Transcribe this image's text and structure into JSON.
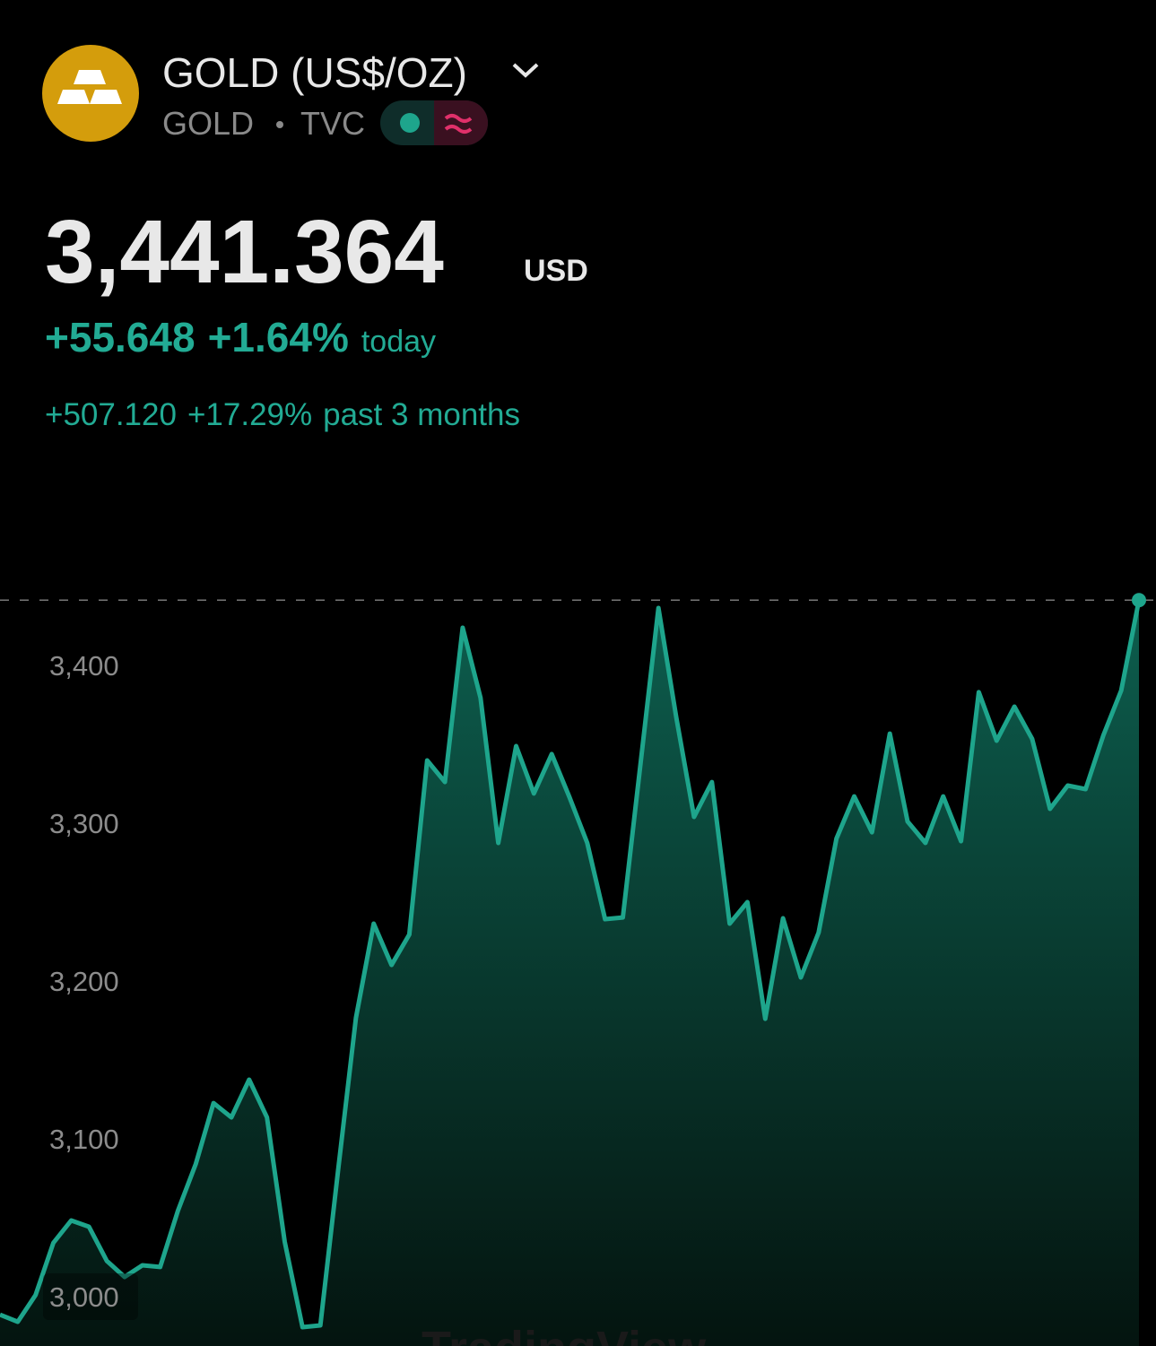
{
  "header": {
    "title": "GOLD (US$/OZ)",
    "symbol": "GOLD",
    "exchange": "TVC",
    "price": "3,441.364",
    "currency": "USD",
    "change_today": "+55.648",
    "change_today_pct": "+1.64%",
    "today_label": "today",
    "change_period": "+507.120",
    "change_period_pct": "+17.29%",
    "period_label": "past 3 months",
    "watermark": "TradingView"
  },
  "chart_data": {
    "type": "area",
    "color": "#1ea58c",
    "values": [
      2988.6,
      2984.1,
      3001.1,
      3034.1,
      3048.3,
      3044.3,
      3022.7,
      3012.5,
      3019.9,
      3018.8,
      3054.5,
      3084.1,
      3122.7,
      3113.6,
      3137.5,
      3113.6,
      3034.7,
      2980.7,
      2981.8,
      3080.1,
      3176.7,
      3236.4,
      3210.2,
      3229.5,
      3339.8,
      3326.1,
      3423.9,
      3379.5,
      3287.5,
      3348.9,
      3318.8,
      3343.8,
      3316.5,
      3287.5,
      3239.2,
      3240.3,
      3338.6,
      3436.4,
      3367.0,
      3304.0,
      3326.1,
      3236.4,
      3250.0,
      3176.1,
      3239.8,
      3202.3,
      3230.7,
      3290.3,
      3317.0,
      3294.3,
      3356.8,
      3301.1,
      3287.5,
      3317.0,
      3288.6,
      3383.0,
      3352.3,
      3373.9,
      3353.4,
      3309.1,
      3323.9,
      3321.6,
      3355.7,
      3384.1,
      3441.364
    ],
    "ylim": [
      2968.75,
      3480.7
    ],
    "yticks": [
      {
        "value": 3000,
        "label": "3,000"
      },
      {
        "value": 3100,
        "label": "3,100"
      },
      {
        "value": 3200,
        "label": "3,200"
      },
      {
        "value": 3300,
        "label": "3,300"
      },
      {
        "value": 3400,
        "label": "3,400"
      }
    ]
  }
}
